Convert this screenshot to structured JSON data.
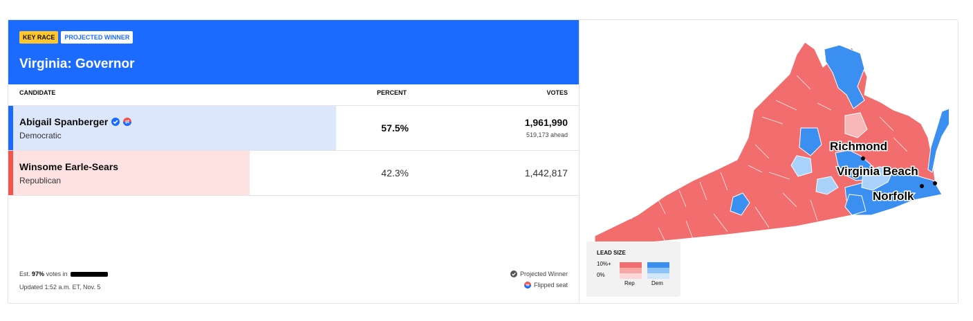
{
  "header": {
    "badge_key": "KEY RACE",
    "badge_winner": "PROJECTED WINNER",
    "title": "Virginia: Governor",
    "bg_color": "#1c6bff"
  },
  "table": {
    "col_candidate": "CANDIDATE",
    "col_percent": "PERCENT",
    "col_votes": "VOTES"
  },
  "candidates": [
    {
      "name": "Abigail Spanberger",
      "party": "Democratic",
      "percent": "57.5%",
      "votes": "1,961,990",
      "ahead": "519,173 ahead",
      "bar_fraction": 0.575,
      "color": "#1c6bff",
      "bar_color": "#dde7fb",
      "icons": [
        "check-icon",
        "flip-icon"
      ]
    },
    {
      "name": "Winsome Earle-Sears",
      "party": "Republican",
      "percent": "42.3%",
      "votes": "1,442,817",
      "bar_fraction": 0.423,
      "color": "#f0554f",
      "bar_color": "#fde2e1"
    }
  ],
  "footer": {
    "est_prefix": "Est.",
    "est_value": "97%",
    "est_suffix": "votes in",
    "updated": "Updated 1:52 a.m. ET, Nov. 5",
    "legend_winner": "Projected Winner",
    "legend_flipped": "Flipped seat"
  },
  "map": {
    "cities": [
      "Richmond",
      "Virginia Beach",
      "Norfolk"
    ],
    "rep_color": "#f26d6d",
    "dem_color": "#3b8ff0"
  },
  "lead_legend": {
    "title": "LEAD SIZE",
    "high": "10%+",
    "low": "0%",
    "rep": "Rep",
    "dem": "Dem"
  }
}
